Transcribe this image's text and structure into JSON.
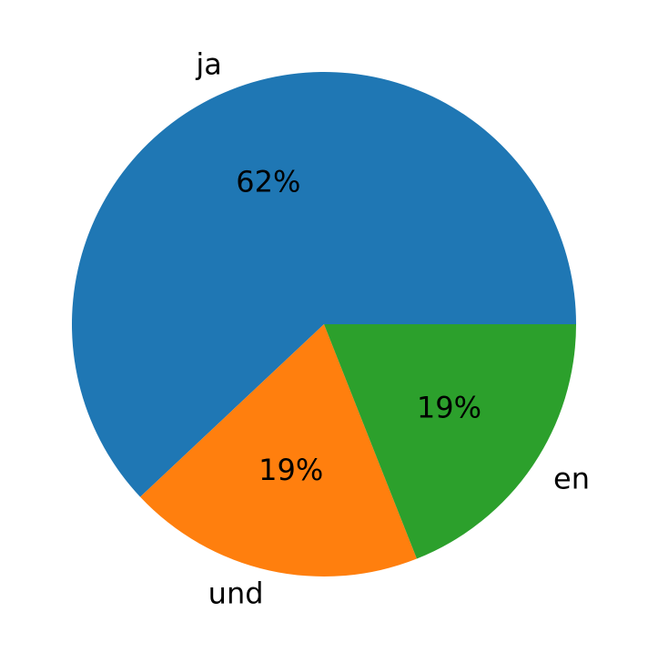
{
  "chart_data": {
    "type": "pie",
    "categories": [
      "ja",
      "und",
      "en"
    ],
    "values": [
      62,
      19,
      19
    ],
    "value_labels": [
      "62%",
      "19%",
      "19%"
    ],
    "colors": [
      "#1f77b4",
      "#ff7f0e",
      "#2ca02c"
    ]
  }
}
